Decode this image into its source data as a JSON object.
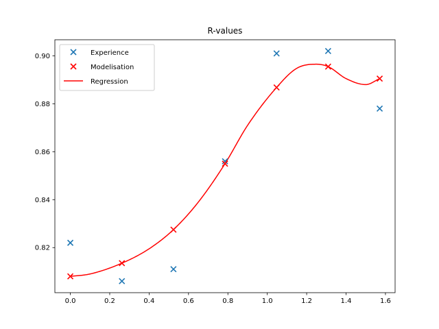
{
  "chart_data": {
    "type": "scatter",
    "title": "R-values",
    "xlabel": "",
    "ylabel": "",
    "xlim": [
      -0.0785,
      1.649
    ],
    "ylim": [
      0.8012,
      0.9067
    ],
    "xticks": [
      0.0,
      0.2,
      0.4,
      0.6,
      0.8,
      1.0,
      1.2,
      1.4,
      1.6
    ],
    "xtick_labels": [
      "0.0",
      "0.2",
      "0.4",
      "0.6",
      "0.8",
      "1.0",
      "1.2",
      "1.4",
      "1.6"
    ],
    "yticks": [
      0.82,
      0.84,
      0.86,
      0.88,
      0.9
    ],
    "ytick_labels": [
      "0.82",
      "0.84",
      "0.86",
      "0.88",
      "0.90"
    ],
    "grid": false,
    "legend_position": "top-left",
    "legend": [
      "Experience",
      "Modelisation",
      "Regression"
    ],
    "series": [
      {
        "name": "Experience",
        "kind": "scatter",
        "marker": "x",
        "color": "#1f77b4",
        "x": [
          0.0,
          0.2618,
          0.5236,
          0.7854,
          1.0472,
          1.309,
          1.5708
        ],
        "y": [
          0.822,
          0.806,
          0.811,
          0.856,
          0.901,
          0.902,
          0.878
        ]
      },
      {
        "name": "Modelisation",
        "kind": "scatter",
        "marker": "x",
        "color": "#ff0000",
        "x": [
          0.0,
          0.2618,
          0.5236,
          0.7854,
          1.0472,
          1.309,
          1.5708
        ],
        "y": [
          0.808,
          0.8135,
          0.8275,
          0.855,
          0.8868,
          0.8955,
          0.8905
        ]
      },
      {
        "name": "Regression",
        "kind": "line",
        "color": "#ff0000",
        "x": [
          0.0,
          0.1,
          0.2618,
          0.4,
          0.5236,
          0.65,
          0.7854,
          0.9,
          1.0472,
          1.15,
          1.25,
          1.309,
          1.4,
          1.5,
          1.5708
        ],
        "y": [
          0.808,
          0.809,
          0.8135,
          0.8195,
          0.8275,
          0.839,
          0.855,
          0.871,
          0.8868,
          0.8948,
          0.8965,
          0.8955,
          0.8905,
          0.888,
          0.8905
        ]
      }
    ]
  }
}
